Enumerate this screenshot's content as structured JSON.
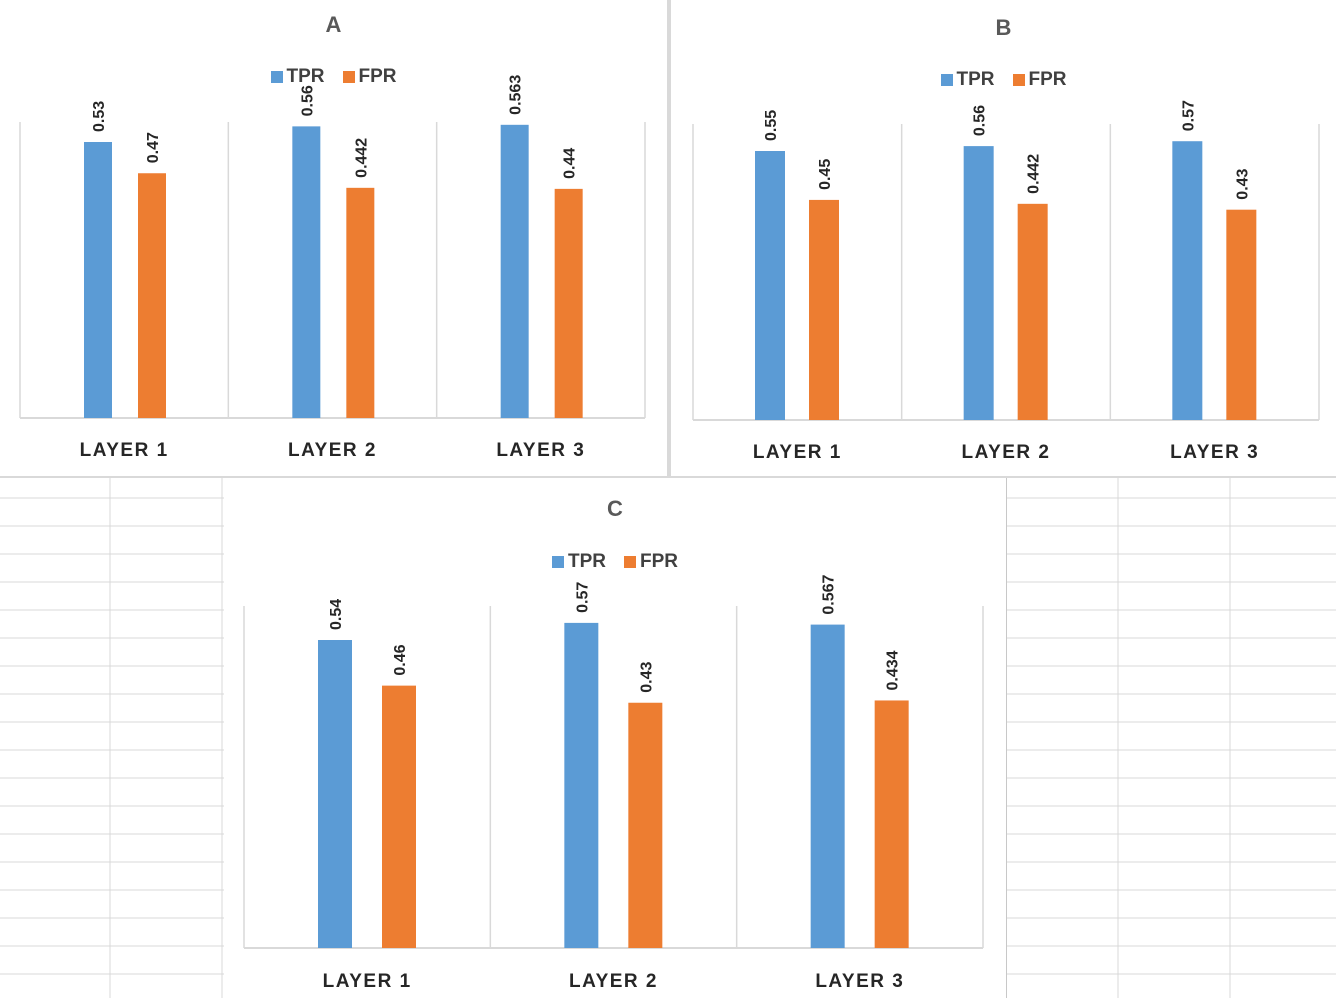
{
  "colors": {
    "tpr": "#5b9bd5",
    "fpr": "#ed7d31",
    "axis": "#d9d9d9",
    "grid": "#d9d9d9"
  },
  "charts": [
    {
      "title": "A",
      "legend": {
        "tpr": "TPR",
        "fpr": "FPR"
      }
    },
    {
      "title": "B",
      "legend": {
        "tpr": "TPR",
        "fpr": "FPR"
      }
    },
    {
      "title": "C",
      "legend": {
        "tpr": "TPR",
        "fpr": "FPR"
      }
    }
  ],
  "chart_data": [
    {
      "type": "bar",
      "title": "A",
      "categories": [
        "LAYER 1",
        "LAYER 2",
        "LAYER 3"
      ],
      "series": [
        {
          "name": "TPR",
          "values": [
            0.53,
            0.56,
            0.563
          ],
          "labels": [
            "0.53",
            "0.56",
            "0.563"
          ]
        },
        {
          "name": "FPR",
          "values": [
            0.47,
            0.442,
            0.44
          ],
          "labels": [
            "0.47",
            "0.442",
            "0.44"
          ]
        }
      ],
      "ylim": [
        0,
        0.6
      ],
      "legend_position": "top",
      "grid": false
    },
    {
      "type": "bar",
      "title": "B",
      "categories": [
        "LAYER 1",
        "LAYER 2",
        "LAYER 3"
      ],
      "series": [
        {
          "name": "TPR",
          "values": [
            0.55,
            0.56,
            0.57
          ],
          "labels": [
            "0.55",
            "0.56",
            "0.57"
          ]
        },
        {
          "name": "FPR",
          "values": [
            0.45,
            0.442,
            0.43
          ],
          "labels": [
            "0.45",
            "0.442",
            "0.43"
          ]
        }
      ],
      "ylim": [
        0,
        0.6
      ],
      "legend_position": "top",
      "grid": false
    },
    {
      "type": "bar",
      "title": "C",
      "categories": [
        "LAYER 1",
        "LAYER 2",
        "LAYER 3"
      ],
      "series": [
        {
          "name": "TPR",
          "values": [
            0.54,
            0.57,
            0.567
          ],
          "labels": [
            "0.54",
            "0.57",
            "0.567"
          ]
        },
        {
          "name": "FPR",
          "values": [
            0.46,
            0.43,
            0.434
          ],
          "labels": [
            "0.46",
            "0.43",
            "0.434"
          ]
        }
      ],
      "ylim": [
        0,
        0.6
      ],
      "legend_position": "top",
      "grid": false
    }
  ]
}
